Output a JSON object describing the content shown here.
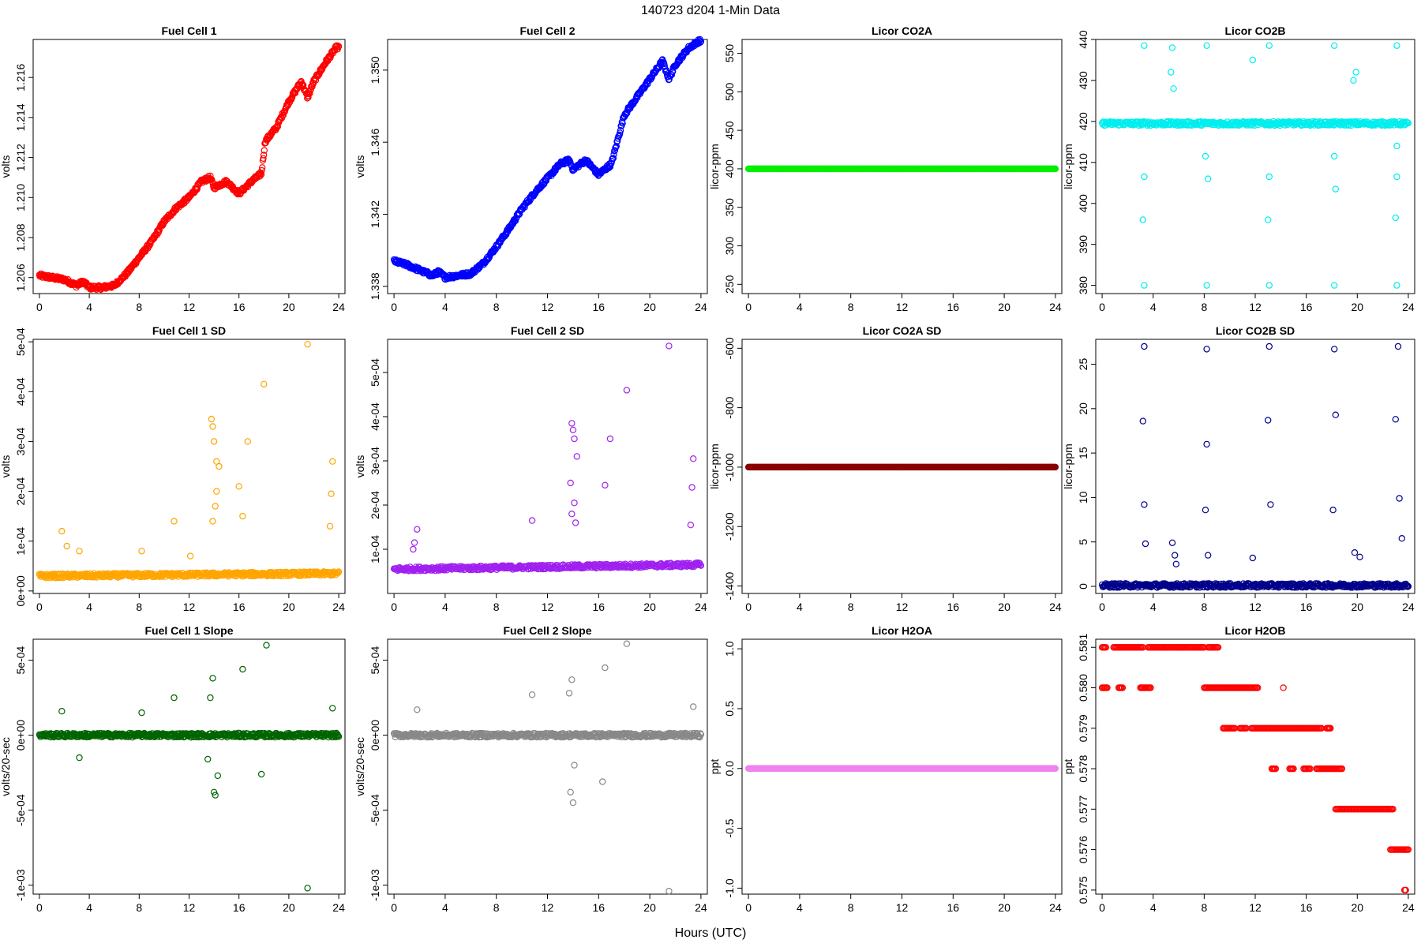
{
  "figure": {
    "title": "140723   d204   1-Min Data",
    "xlabel": "Hours (UTC)"
  },
  "chart_data": [
    {
      "type": "scatter",
      "title": "Fuel Cell 1",
      "ylabel": "volts",
      "color": "#ff0000",
      "xlim": [
        -0.5,
        24.5
      ],
      "ylim": [
        1.2052,
        1.2179
      ],
      "xticks": [
        0,
        4,
        8,
        12,
        16,
        20,
        24
      ],
      "yticks": [
        1.206,
        1.208,
        1.21,
        1.212,
        1.214,
        1.216
      ],
      "yticklabels": [
        "1.206",
        "1.208",
        "1.210",
        "1.212",
        "1.214",
        "1.216"
      ],
      "x": [
        0,
        1,
        2,
        3,
        3.5,
        4,
        5,
        6,
        7,
        8,
        9,
        10,
        11,
        12,
        13,
        13.7,
        14,
        15,
        16,
        17,
        17.8,
        18.1,
        19,
        20,
        21,
        21.5,
        22,
        23,
        23.8
      ],
      "y": [
        1.2061,
        1.206,
        1.2059,
        1.2056,
        1.2058,
        1.2055,
        1.2055,
        1.2056,
        1.2062,
        1.207,
        1.2078,
        1.2088,
        1.2095,
        1.21,
        1.2108,
        1.211,
        1.2105,
        1.2108,
        1.2102,
        1.2108,
        1.2112,
        1.2128,
        1.2135,
        1.2148,
        1.2158,
        1.215,
        1.2158,
        1.2168,
        1.2175
      ],
      "n_points": 600
    },
    {
      "type": "scatter",
      "title": "Fuel Cell 2",
      "ylabel": "volts",
      "color": "#0000ff",
      "xlim": [
        -0.5,
        24.5
      ],
      "ylim": [
        1.3376,
        1.3517
      ],
      "xticks": [
        0,
        4,
        8,
        12,
        16,
        20,
        24
      ],
      "yticks": [
        1.338,
        1.342,
        1.346,
        1.35
      ],
      "yticklabels": [
        "1.338",
        "1.342",
        "1.346",
        "1.350"
      ],
      "x": [
        0,
        1,
        2,
        3,
        3.5,
        4,
        5,
        6,
        7,
        8,
        9,
        10,
        11,
        12,
        13,
        13.7,
        14,
        15,
        16,
        17,
        18,
        19,
        20,
        21,
        21.5,
        22,
        23,
        23.8
      ],
      "y": [
        1.3394,
        1.3392,
        1.3389,
        1.3386,
        1.3388,
        1.3385,
        1.3386,
        1.3387,
        1.3393,
        1.3402,
        1.3412,
        1.3423,
        1.3432,
        1.344,
        1.3448,
        1.345,
        1.3445,
        1.345,
        1.3442,
        1.3448,
        1.3475,
        1.3485,
        1.3495,
        1.3505,
        1.3495,
        1.3503,
        1.3512,
        1.3516
      ],
      "n_points": 600
    },
    {
      "type": "scatter",
      "title": "Licor CO2A",
      "ylabel": "licor-ppm",
      "color": "#00ee00",
      "xlim": [
        -0.5,
        24.5
      ],
      "ylim": [
        238,
        568
      ],
      "xticks": [
        0,
        4,
        8,
        12,
        16,
        20,
        24
      ],
      "yticks": [
        250,
        300,
        350,
        400,
        450,
        500,
        550
      ],
      "yticklabels": [
        "250",
        "300",
        "350",
        "400",
        "450",
        "500",
        "550"
      ],
      "x": [
        0,
        24
      ],
      "y": [
        400,
        400
      ],
      "n_points": 600
    },
    {
      "type": "scatter",
      "title": "Licor CO2B",
      "ylabel": "licor-ppm",
      "color": "#00eeee",
      "xlim": [
        -0.5,
        24.5
      ],
      "ylim": [
        378,
        440
      ],
      "xticks": [
        0,
        4,
        8,
        12,
        16,
        20,
        24
      ],
      "yticks": [
        380,
        390,
        400,
        410,
        420,
        430,
        440
      ],
      "yticklabels": [
        "380",
        "390",
        "400",
        "410",
        "420",
        "430",
        "440"
      ],
      "x": [
        0,
        24
      ],
      "y": [
        419.5,
        419.5
      ],
      "n_points": 500,
      "outliers": [
        [
          3.3,
          438.5
        ],
        [
          3.3,
          380
        ],
        [
          3.2,
          396
        ],
        [
          3.3,
          406.5
        ],
        [
          5.5,
          438
        ],
        [
          5.6,
          428
        ],
        [
          5.4,
          432
        ],
        [
          8.2,
          438.5
        ],
        [
          8.2,
          380
        ],
        [
          8.1,
          411.5
        ],
        [
          8.3,
          406
        ],
        [
          13.1,
          438.5
        ],
        [
          13.1,
          380
        ],
        [
          13.0,
          396
        ],
        [
          13.1,
          406.5
        ],
        [
          11.8,
          435
        ],
        [
          18.2,
          438.5
        ],
        [
          18.2,
          380
        ],
        [
          18.3,
          403.5
        ],
        [
          18.2,
          411.5
        ],
        [
          19.9,
          432
        ],
        [
          19.7,
          430
        ],
        [
          23.1,
          438.5
        ],
        [
          23.1,
          380
        ],
        [
          23.0,
          396.5
        ],
        [
          23.1,
          406.5
        ],
        [
          23.1,
          414
        ]
      ]
    },
    {
      "type": "scatter",
      "title": "Fuel Cell 1 SD",
      "ylabel": "volts",
      "color": "#ffa500",
      "xlim": [
        -0.5,
        24.5
      ],
      "ylim": [
        -5e-06,
        0.000505
      ],
      "xticks": [
        0,
        4,
        8,
        12,
        16,
        20,
        24
      ],
      "yticks": [
        0,
        0.0001,
        0.0002,
        0.0003,
        0.0004,
        0.0005
      ],
      "yticklabels": [
        "0e+00",
        "1e-04",
        "2e-04",
        "3e-04",
        "4e-04",
        "5e-04"
      ],
      "x": [
        0,
        24
      ],
      "y": [
        3e-05,
        3.5e-05
      ],
      "n_points": 500,
      "outliers": [
        [
          1.8,
          0.00012
        ],
        [
          2.2,
          9e-05
        ],
        [
          3.2,
          8e-05
        ],
        [
          8.2,
          8e-05
        ],
        [
          10.8,
          0.00014
        ],
        [
          12.1,
          7e-05
        ],
        [
          13.8,
          0.000345
        ],
        [
          13.9,
          0.00033
        ],
        [
          14.0,
          0.0003
        ],
        [
          14.2,
          0.00026
        ],
        [
          14.4,
          0.00025
        ],
        [
          14.1,
          0.00017
        ],
        [
          13.9,
          0.00014
        ],
        [
          14.2,
          0.0002
        ],
        [
          16.0,
          0.00021
        ],
        [
          16.3,
          0.00015
        ],
        [
          16.7,
          0.0003
        ],
        [
          18.0,
          0.000415
        ],
        [
          21.5,
          0.000495
        ],
        [
          23.5,
          0.00026
        ],
        [
          23.4,
          0.000195
        ],
        [
          23.3,
          0.00013
        ]
      ]
    },
    {
      "type": "scatter",
      "title": "Fuel Cell 2 SD",
      "ylabel": "volts",
      "color": "#a020f0",
      "xlim": [
        -0.5,
        24.5
      ],
      "ylim": [
        0.0,
        0.000575
      ],
      "xticks": [
        0,
        4,
        8,
        12,
        16,
        20,
        24
      ],
      "yticks": [
        0.0001,
        0.0002,
        0.0003,
        0.0004,
        0.0005
      ],
      "yticklabels": [
        "1e-04",
        "2e-04",
        "3e-04",
        "4e-04",
        "5e-04"
      ],
      "x": [
        0,
        24
      ],
      "y": [
        5.5e-05,
        6.5e-05
      ],
      "n_points": 500,
      "outliers": [
        [
          1.8,
          0.000145
        ],
        [
          1.6,
          0.000115
        ],
        [
          1.5,
          0.0001
        ],
        [
          10.8,
          0.000165
        ],
        [
          13.9,
          0.000385
        ],
        [
          14.0,
          0.00037
        ],
        [
          14.1,
          0.00035
        ],
        [
          14.3,
          0.00031
        ],
        [
          13.8,
          0.00025
        ],
        [
          14.1,
          0.000205
        ],
        [
          13.9,
          0.00018
        ],
        [
          14.2,
          0.00016
        ],
        [
          16.5,
          0.000245
        ],
        [
          16.9,
          0.00035
        ],
        [
          18.2,
          0.00046
        ],
        [
          21.5,
          0.00056
        ],
        [
          23.4,
          0.000305
        ],
        [
          23.3,
          0.00024
        ],
        [
          23.2,
          0.000155
        ]
      ]
    },
    {
      "type": "scatter",
      "title": "Licor CO2A SD",
      "ylabel": "licor-ppm",
      "color": "#8b0000",
      "xlim": [
        -0.5,
        24.5
      ],
      "ylim": [
        -1425,
        -570
      ],
      "xticks": [
        0,
        4,
        8,
        12,
        16,
        20,
        24
      ],
      "yticks": [
        -1400,
        -1200,
        -1000,
        -800,
        -600
      ],
      "yticklabels": [
        "-1400",
        "-1200",
        "-1000",
        "-800",
        "-600"
      ],
      "x": [
        0,
        24
      ],
      "y": [
        -1000,
        -1000
      ],
      "n_points": 600
    },
    {
      "type": "scatter",
      "title": "Licor CO2B SD",
      "ylabel": "licor-ppm",
      "color": "#00008b",
      "xlim": [
        -0.5,
        24.5
      ],
      "ylim": [
        -0.8,
        27.8
      ],
      "xticks": [
        0,
        4,
        8,
        12,
        16,
        20,
        24
      ],
      "yticks": [
        0,
        5,
        10,
        15,
        20,
        25
      ],
      "yticklabels": [
        "0",
        "5",
        "10",
        "15",
        "20",
        "25"
      ],
      "x": [
        0,
        24
      ],
      "y": [
        0.1,
        0.1
      ],
      "n_points": 500,
      "outliers": [
        [
          3.3,
          27
        ],
        [
          3.2,
          18.6
        ],
        [
          3.3,
          9.2
        ],
        [
          3.4,
          4.8
        ],
        [
          5.5,
          4.9
        ],
        [
          5.7,
          3.5
        ],
        [
          5.8,
          2.5
        ],
        [
          8.2,
          26.7
        ],
        [
          8.2,
          16
        ],
        [
          8.1,
          8.6
        ],
        [
          8.3,
          3.5
        ],
        [
          11.8,
          3.2
        ],
        [
          13.1,
          27
        ],
        [
          13.0,
          18.7
        ],
        [
          13.2,
          9.2
        ],
        [
          18.2,
          26.7
        ],
        [
          18.3,
          19.3
        ],
        [
          18.1,
          8.6
        ],
        [
          19.8,
          3.8
        ],
        [
          20.2,
          3.3
        ],
        [
          23.2,
          27
        ],
        [
          23.0,
          18.8
        ],
        [
          23.3,
          9.9
        ],
        [
          23.5,
          5.4
        ]
      ]
    },
    {
      "type": "scatter",
      "title": "Fuel Cell 1 Slope",
      "ylabel": "volts/20-sec",
      "color": "#006400",
      "xlim": [
        -0.5,
        24.5
      ],
      "ylim": [
        -0.00106,
        0.00064
      ],
      "xticks": [
        0,
        4,
        8,
        12,
        16,
        20,
        24
      ],
      "yticks": [
        -0.001,
        -0.0005,
        0,
        0.0005
      ],
      "yticklabels": [
        "-1e-03",
        "-5e-04",
        "0e+00",
        "5e-04"
      ],
      "x": [
        0,
        24
      ],
      "y": [
        0,
        0
      ],
      "n_points": 500,
      "outliers": [
        [
          1.8,
          0.00016
        ],
        [
          3.2,
          -0.00015
        ],
        [
          8.2,
          0.00015
        ],
        [
          10.8,
          0.00025
        ],
        [
          13.9,
          0.00038
        ],
        [
          14.0,
          -0.00038
        ],
        [
          14.1,
          -0.0004
        ],
        [
          13.7,
          0.00025
        ],
        [
          13.5,
          -0.00016
        ],
        [
          14.3,
          -0.00027
        ],
        [
          16.3,
          0.00044
        ],
        [
          18.2,
          0.0006
        ],
        [
          17.8,
          -0.00026
        ],
        [
          21.5,
          -0.00102
        ],
        [
          23.5,
          0.00018
        ]
      ]
    },
    {
      "type": "scatter",
      "title": "Fuel Cell 2 Slope",
      "ylabel": "volts/20-sec",
      "color": "#888888",
      "xlim": [
        -0.5,
        24.5
      ],
      "ylim": [
        -0.00106,
        0.00064
      ],
      "xticks": [
        0,
        4,
        8,
        12,
        16,
        20,
        24
      ],
      "yticks": [
        -0.001,
        -0.0005,
        0,
        0.0005
      ],
      "yticklabels": [
        "-1e-03",
        "-5e-04",
        "0e+00",
        "5e-04"
      ],
      "x": [
        0,
        24
      ],
      "y": [
        0,
        0
      ],
      "n_points": 500,
      "outliers": [
        [
          1.8,
          0.00017
        ],
        [
          10.8,
          0.00027
        ],
        [
          13.9,
          0.00037
        ],
        [
          13.8,
          -0.00038
        ],
        [
          14.0,
          -0.00045
        ],
        [
          14.1,
          -0.0002
        ],
        [
          13.7,
          0.00028
        ],
        [
          16.5,
          0.00045
        ],
        [
          16.3,
          -0.00031
        ],
        [
          18.2,
          0.00061
        ],
        [
          21.5,
          -0.00104
        ],
        [
          23.4,
          0.00019
        ]
      ]
    },
    {
      "type": "scatter",
      "title": "Licor H2OA",
      "ylabel": "ppt",
      "color": "#ee82ee",
      "xlim": [
        -0.5,
        24.5
      ],
      "ylim": [
        -1.05,
        1.08
      ],
      "xticks": [
        0,
        4,
        8,
        12,
        16,
        20,
        24
      ],
      "yticks": [
        -1,
        -0.5,
        0,
        0.5,
        1
      ],
      "yticklabels": [
        "-1.0",
        "-0.5",
        "0.0",
        "0.5",
        "1.0"
      ],
      "x": [
        0,
        24
      ],
      "y": [
        0,
        0
      ],
      "n_points": 600
    },
    {
      "type": "scatter",
      "title": "Licor H2OB",
      "ylabel": "ppt",
      "color": "#ff0000",
      "xlim": [
        -0.5,
        24.5
      ],
      "ylim": [
        0.5749,
        0.5812
      ],
      "xticks": [
        0,
        4,
        8,
        12,
        16,
        20,
        24
      ],
      "yticks": [
        0.575,
        0.576,
        0.577,
        0.578,
        0.579,
        0.58,
        0.581
      ],
      "yticklabels": [
        "0.575",
        "0.576",
        "0.577",
        "0.578",
        "0.579",
        "0.580",
        "0.581"
      ],
      "levels": [
        [
          0.0,
          0.3,
          0.581
        ],
        [
          0.0,
          0.4,
          0.58
        ],
        [
          0.9,
          3.2,
          0.581
        ],
        [
          1.3,
          1.6,
          0.58
        ],
        [
          3.0,
          3.8,
          0.58
        ],
        [
          3.6,
          8.0,
          0.581
        ],
        [
          8.3,
          9.1,
          0.581
        ],
        [
          8.0,
          12.2,
          0.58
        ],
        [
          9.5,
          10.4,
          0.579
        ],
        [
          10.8,
          11.3,
          0.579
        ],
        [
          11.7,
          17.2,
          0.579
        ],
        [
          13.3,
          13.6,
          0.578
        ],
        [
          14.7,
          15.0,
          0.578
        ],
        [
          15.8,
          16.3,
          0.578
        ],
        [
          16.8,
          18.8,
          0.578
        ],
        [
          17.6,
          17.9,
          0.579
        ],
        [
          18.3,
          22.8,
          0.577
        ],
        [
          22.6,
          24.0,
          0.576
        ],
        [
          23.7,
          23.8,
          0.575
        ]
      ],
      "outliers": [
        [
          14.2,
          0.58
        ],
        [
          17.8,
          0.579
        ],
        [
          9.5,
          0.579
        ]
      ]
    }
  ]
}
